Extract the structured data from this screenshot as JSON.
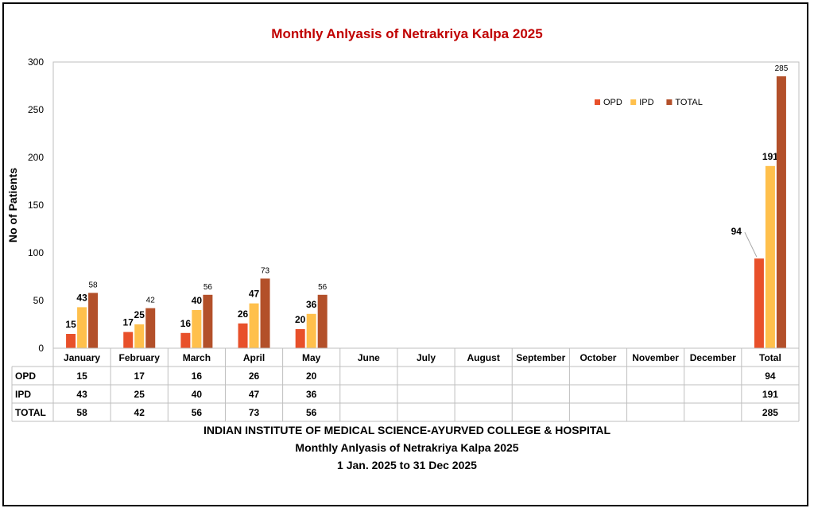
{
  "chart_data": {
    "type": "bar",
    "title": "Monthly Anlyasis of Netrakriya Kalpa  2025",
    "ylabel": "No of Patients",
    "xlabel": "",
    "ylim": [
      0,
      300
    ],
    "yticks": [
      0,
      50,
      100,
      150,
      200,
      250,
      300
    ],
    "grid": false,
    "legend_position": "top-right",
    "categories": [
      "January",
      "February",
      "March",
      "April",
      "May",
      "June",
      "July",
      "August",
      "September",
      "October",
      "November",
      "December",
      "Total"
    ],
    "series": [
      {
        "name": "OPD",
        "color": "#E8502A",
        "values": [
          15,
          17,
          16,
          26,
          20,
          null,
          null,
          null,
          null,
          null,
          null,
          null,
          94
        ]
      },
      {
        "name": "IPD",
        "color": "#FFC04C",
        "values": [
          43,
          25,
          40,
          47,
          36,
          null,
          null,
          null,
          null,
          null,
          null,
          null,
          191
        ]
      },
      {
        "name": "TOTAL",
        "color": "#B3502A",
        "values": [
          58,
          42,
          56,
          73,
          56,
          null,
          null,
          null,
          null,
          null,
          null,
          null,
          285
        ]
      }
    ]
  },
  "footer": {
    "line1": "INDIAN INSTITUTE OF MEDICAL SCIENCE-AYURVED COLLEGE & HOSPITAL",
    "line2": "Monthly Anlyasis of Netrakriya Kalpa  2025",
    "line3": "1 Jan. 2025 to 31 Dec 2025"
  }
}
